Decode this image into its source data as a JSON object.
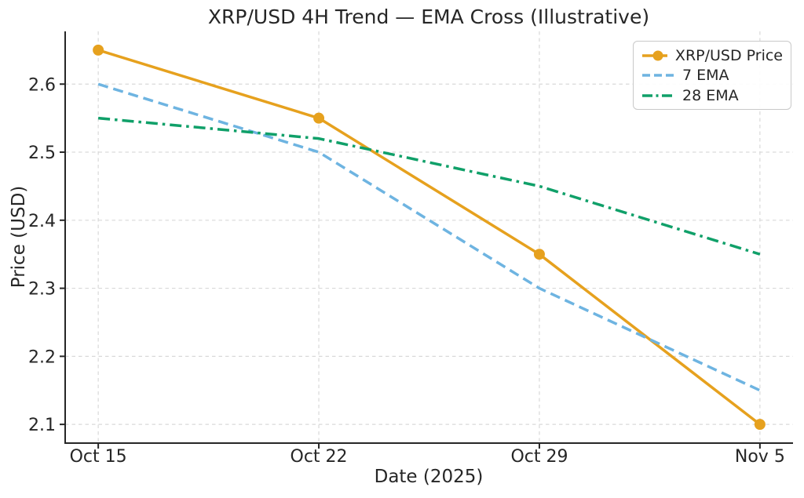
{
  "chart_data": {
    "type": "line",
    "title": "XRP/USD 4H Trend — EMA Cross (Illustrative)",
    "xlabel": "Date (2025)",
    "ylabel": "Price (USD)",
    "categories": [
      "Oct 15",
      "Oct 22",
      "Oct 29",
      "Nov 5"
    ],
    "series": [
      {
        "name": "XRP/USD Price",
        "values": [
          2.65,
          2.55,
          2.35,
          2.1
        ],
        "color": "#E6A11E",
        "line_style": "solid",
        "marker": "circle"
      },
      {
        "name": "7 EMA",
        "values": [
          2.6,
          2.5,
          2.3,
          2.15
        ],
        "color": "#6EB4E1",
        "line_style": "dashed",
        "marker": "none"
      },
      {
        "name": "28 EMA",
        "values": [
          2.55,
          2.52,
          2.45,
          2.35
        ],
        "color": "#10A069",
        "line_style": "dashdot",
        "marker": "none"
      }
    ],
    "y_ticks": [
      2.1,
      2.2,
      2.3,
      2.4,
      2.5,
      2.6
    ],
    "ylim": [
      2.0725,
      2.6775
    ],
    "grid": true,
    "grid_style": "dashed",
    "legend_position": "upper right",
    "colors": {
      "grid": "#D9D9D9",
      "spine": "#262626",
      "text": "#262626",
      "legend_border": "#C9C9C9",
      "background": "#FFFFFF"
    }
  }
}
